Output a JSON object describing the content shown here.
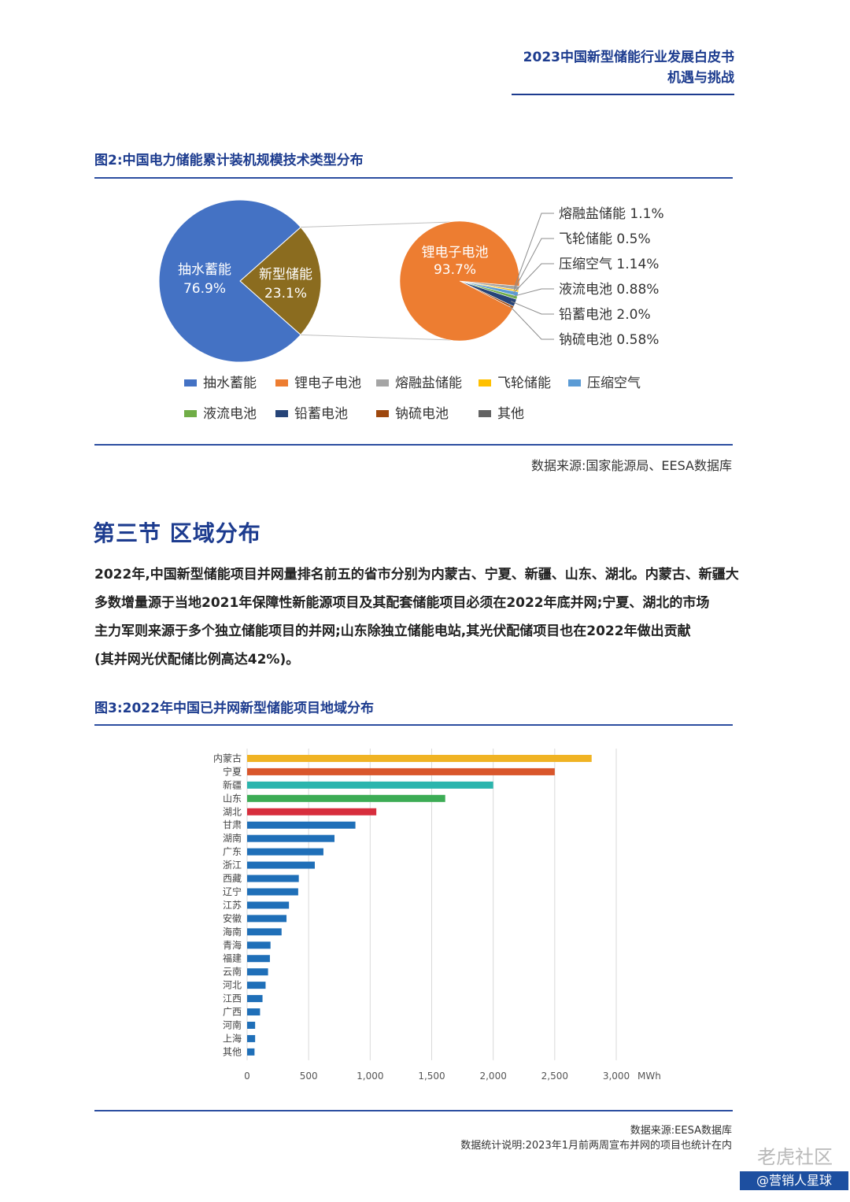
{
  "header": {
    "line1": "2023中国新型储能行业发展白皮书",
    "line2": "机遇与挑战"
  },
  "figure2": {
    "title": "图2:中国电力储能累计装机规模技术类型分布",
    "source": "数据来源:国家能源局、EESA数据库"
  },
  "section": {
    "title": "第三节  区域分布",
    "paragraph_lines": [
      "2022年,中国新型储能项目并网量排名前五的省市分别为内蒙古、宁夏、新疆、山东、湖北。内蒙古、新疆大",
      "多数增量源于当地2021年保障性新能源项目及其配套储能项目必须在2022年底并网;宁夏、湖北的市场",
      "主力军则来源于多个独立储能项目的并网;山东除独立储能电站,其光伏配储项目也在2022年做出贡献",
      "(其并网光伏配储比例高达42%)。"
    ]
  },
  "figure3": {
    "title": "图3:2022年中国已并网新型储能项目地域分布",
    "source": "数据来源:EESA数据库",
    "note": "数据统计说明:2023年1月前两周宣布并网的项目也统计在内"
  },
  "watermark": {
    "text": "老虎社区",
    "badge": "@营销人星球"
  },
  "chart_data": [
    {
      "type": "pie",
      "title": "图2:中国电力储能累计装机规模技术类型分布",
      "main_pie": [
        {
          "label": "抽水蓄能",
          "value": 76.9,
          "value_label": "76.9%",
          "color": "#4472c4"
        },
        {
          "label": "新型储能",
          "value": 23.1,
          "value_label": "23.1%",
          "color": "#8b6c1f"
        }
      ],
      "sub_pie": {
        "center_label": "锂电子电池",
        "center_value": "93.7%",
        "slices": [
          {
            "label": "锂电子电池",
            "value": 93.7,
            "color": "#ed7d31"
          },
          {
            "label": "熔融盐储能",
            "value": 1.1,
            "value_label": "熔融盐储能 1.1%",
            "color": "#a5a5a5"
          },
          {
            "label": "飞轮储能",
            "value": 0.5,
            "value_label": "飞轮储能 0.5%",
            "color": "#ffc000"
          },
          {
            "label": "压缩空气",
            "value": 1.14,
            "value_label": "压缩空气 1.14%",
            "color": "#5b9bd5"
          },
          {
            "label": "液流电池",
            "value": 0.88,
            "value_label": "液流电池 0.88%",
            "color": "#70ad47"
          },
          {
            "label": "铅蓄电池",
            "value": 2.0,
            "value_label": "铅蓄电池 2.0%",
            "color": "#264478"
          },
          {
            "label": "钠硫电池",
            "value": 0.58,
            "value_label": "钠硫电池 0.58%",
            "color": "#9e480e"
          }
        ]
      },
      "legend": [
        {
          "label": "抽水蓄能",
          "color": "#4472c4"
        },
        {
          "label": "锂电子电池",
          "color": "#ed7d31"
        },
        {
          "label": "熔融盐储能",
          "color": "#a5a5a5"
        },
        {
          "label": "飞轮储能",
          "color": "#ffc000"
        },
        {
          "label": "压缩空气",
          "color": "#5b9bd5"
        },
        {
          "label": "液流电池",
          "color": "#70ad47"
        },
        {
          "label": "铅蓄电池",
          "color": "#264478"
        },
        {
          "label": "钠硫电池",
          "color": "#9e480e"
        },
        {
          "label": "其他",
          "color": "#636363"
        }
      ]
    },
    {
      "type": "bar",
      "orientation": "horizontal",
      "title": "图3:2022年中国已并网新型储能项目地域分布",
      "unit": "MWh",
      "xlim": [
        0,
        3000
      ],
      "xticks": [
        0,
        500,
        1000,
        1500,
        2000,
        2500,
        3000
      ],
      "xtick_labels": [
        "0",
        "500",
        "1,000",
        "1,500",
        "2,000",
        "2,500",
        "3,000"
      ],
      "categories": [
        "内蒙古",
        "宁夏",
        "新疆",
        "山东",
        "湖北",
        "甘肃",
        "湖南",
        "广东",
        "浙江",
        "西藏",
        "辽宁",
        "江苏",
        "安徽",
        "海南",
        "青海",
        "福建",
        "云南",
        "河北",
        "江西",
        "广西",
        "河南",
        "上海",
        "其他"
      ],
      "values": [
        2800,
        2500,
        2000,
        1610,
        1050,
        880,
        710,
        620,
        550,
        420,
        415,
        340,
        320,
        280,
        190,
        185,
        170,
        150,
        125,
        105,
        65,
        65,
        60
      ],
      "colors": [
        "#f0b323",
        "#d9562b",
        "#2bb5ad",
        "#3cac55",
        "#d72e3d",
        "#1f6fb8",
        "#1f6fb8",
        "#1f6fb8",
        "#1f6fb8",
        "#1f6fb8",
        "#1f6fb8",
        "#1f6fb8",
        "#1f6fb8",
        "#1f6fb8",
        "#1f6fb8",
        "#1f6fb8",
        "#1f6fb8",
        "#1f6fb8",
        "#1f6fb8",
        "#1f6fb8",
        "#1f6fb8",
        "#1f6fb8",
        "#1f6fb8"
      ]
    }
  ]
}
